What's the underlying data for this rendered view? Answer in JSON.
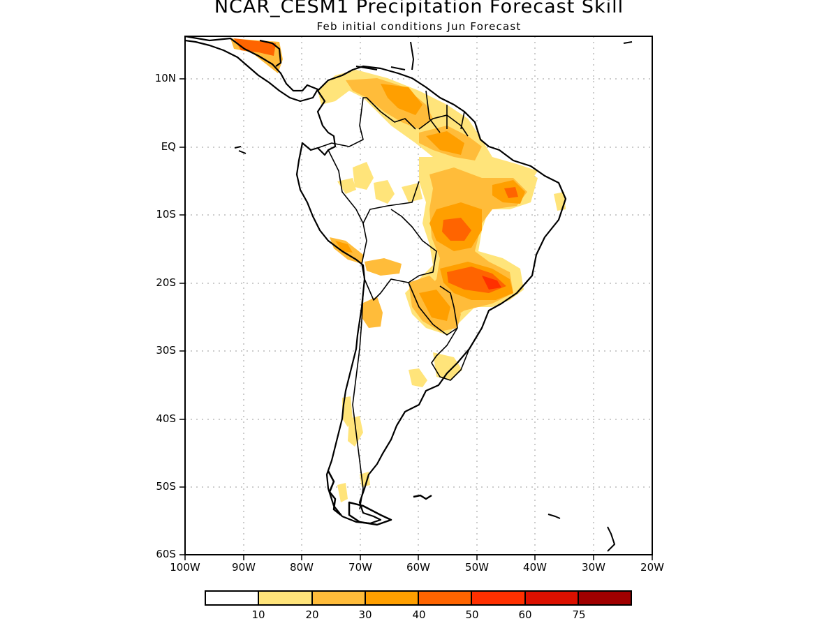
{
  "title": "NCAR_CESM1 Precipitation Forecast Skill",
  "subtitle": "Feb initial conditions  Jun Forecast",
  "lat_labels": [
    "10N",
    "EQ",
    "10S",
    "20S",
    "30S",
    "40S",
    "50S",
    "60S"
  ],
  "lon_labels": [
    "100W",
    "90W",
    "80W",
    "70W",
    "60W",
    "50W",
    "40W",
    "30W",
    "20W"
  ],
  "colorbar": {
    "colors": [
      "#ffffff",
      "#ffe47a",
      "#ffbc3a",
      "#ff9f00",
      "#ff6400",
      "#ff3000",
      "#dc1000",
      "#a00000"
    ],
    "labels": [
      "10",
      "20",
      "30",
      "40",
      "50",
      "60",
      "75"
    ]
  }
}
